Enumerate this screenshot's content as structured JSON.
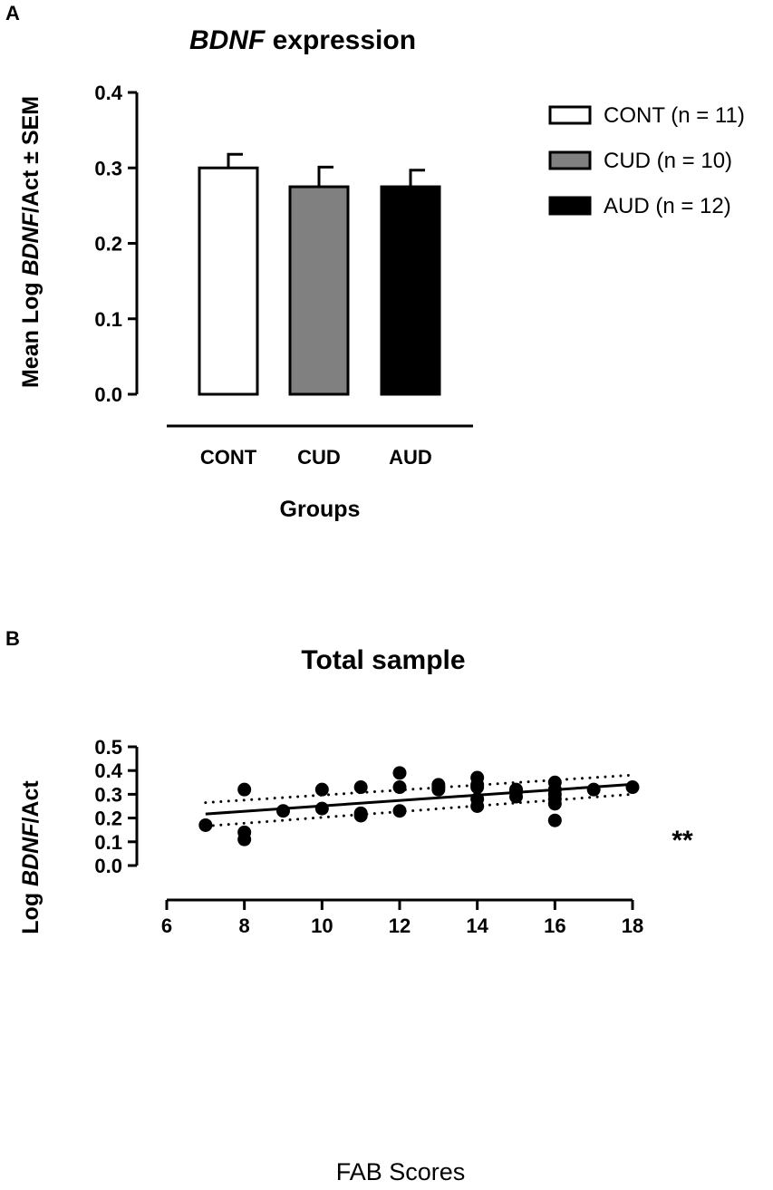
{
  "chart_data": [
    {
      "panel": "A",
      "type": "bar",
      "title": {
        "italic": "BDNF",
        "rest": " expression"
      },
      "xlabel": "Groups",
      "ylabel": {
        "pre": "Mean Log ",
        "italic": "BDNF",
        "post": "/Act ± SEM"
      },
      "ylim": [
        0,
        0.4
      ],
      "yticks": [
        "0.0",
        "0.1",
        "0.2",
        "0.3",
        "0.4"
      ],
      "categories": [
        "CONT",
        "CUD",
        "AUD"
      ],
      "values": [
        0.3,
        0.275,
        0.275
      ],
      "errors": [
        0.018,
        0.026,
        0.022
      ],
      "colors": [
        "#ffffff",
        "#808080",
        "#000000"
      ],
      "legend": [
        {
          "label": "CONT (n = 11)",
          "color": "#ffffff"
        },
        {
          "label": "CUD (n = 10)",
          "color": "#808080"
        },
        {
          "label": "AUD (n = 12)",
          "color": "#000000"
        }
      ]
    },
    {
      "panel": "B",
      "type": "scatter",
      "title": "Total sample",
      "xlabel": "FAB Scores",
      "ylabel": {
        "pre": "Log ",
        "italic": "BDNF",
        "post": "/Act"
      },
      "xlim": [
        6,
        18
      ],
      "ylim": [
        0,
        0.5
      ],
      "xticks": [
        "6",
        "8",
        "10",
        "12",
        "14",
        "16",
        "18"
      ],
      "yticks": [
        "0.0",
        "0.1",
        "0.2",
        "0.3",
        "0.4",
        "0.5"
      ],
      "points": [
        [
          7,
          0.17
        ],
        [
          8,
          0.32
        ],
        [
          8,
          0.14
        ],
        [
          8,
          0.11
        ],
        [
          9,
          0.23
        ],
        [
          10,
          0.32
        ],
        [
          10,
          0.24
        ],
        [
          11,
          0.33
        ],
        [
          11,
          0.22
        ],
        [
          11,
          0.21
        ],
        [
          12,
          0.39
        ],
        [
          12,
          0.33
        ],
        [
          12,
          0.23
        ],
        [
          13,
          0.34
        ],
        [
          13,
          0.33
        ],
        [
          13,
          0.32
        ],
        [
          14,
          0.37
        ],
        [
          14,
          0.34
        ],
        [
          14,
          0.33
        ],
        [
          14,
          0.28
        ],
        [
          14,
          0.25
        ],
        [
          15,
          0.32
        ],
        [
          15,
          0.31
        ],
        [
          15,
          0.29
        ],
        [
          16,
          0.35
        ],
        [
          16,
          0.32
        ],
        [
          16,
          0.3
        ],
        [
          16,
          0.28
        ],
        [
          16,
          0.26
        ],
        [
          16,
          0.19
        ],
        [
          17,
          0.32
        ],
        [
          18,
          0.33
        ]
      ],
      "regression": {
        "x": [
          7,
          18
        ],
        "y": [
          0.217,
          0.342
        ]
      },
      "ci_upper": {
        "x": [
          7,
          18
        ],
        "y": [
          0.265,
          0.381
        ]
      },
      "ci_lower": {
        "x": [
          7,
          18
        ],
        "y": [
          0.166,
          0.3
        ]
      },
      "significance": "**"
    }
  ]
}
